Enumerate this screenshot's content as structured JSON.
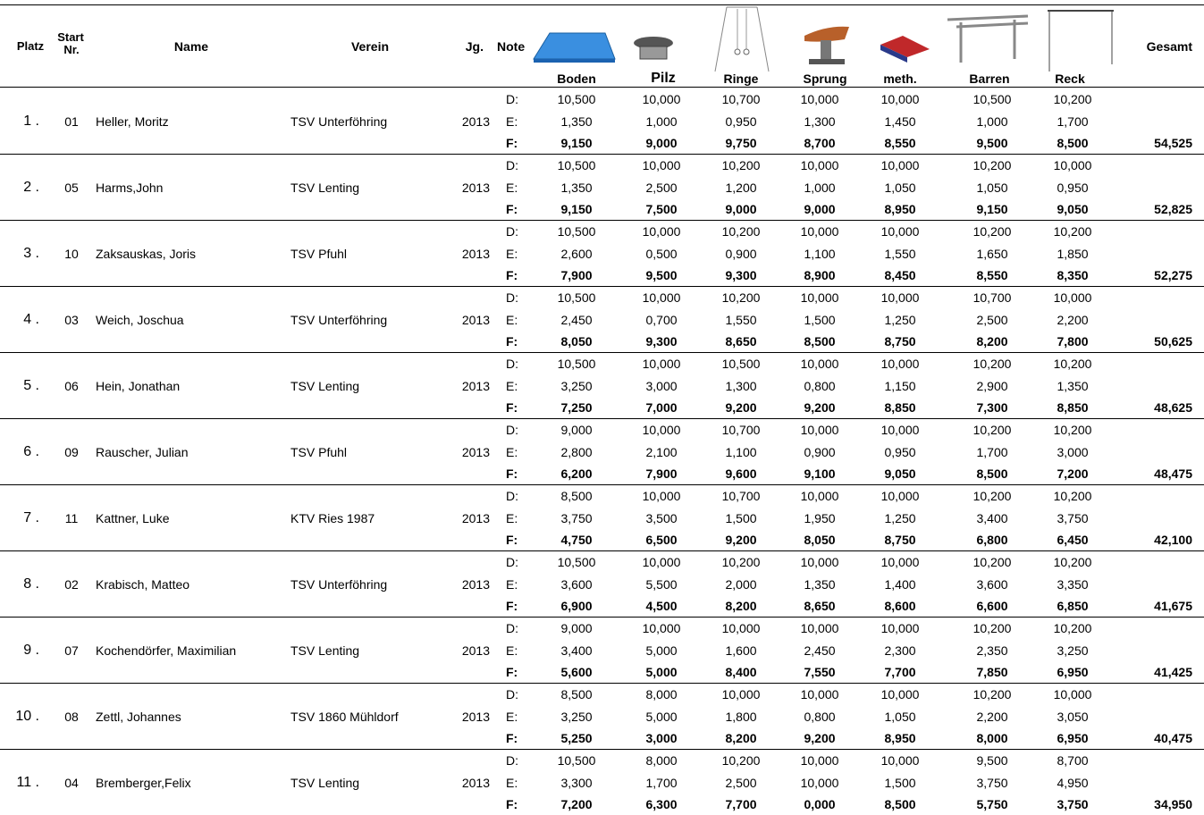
{
  "header": {
    "platz": "Platz",
    "start": "Start",
    "nr": "Nr.",
    "name": "Name",
    "verein": "Verein",
    "jg": "Jg.",
    "note": "Note",
    "apparatus": [
      "Boden",
      "Pilz",
      "Ringe",
      "Sprung",
      "meth.",
      "Barren",
      "Reck"
    ],
    "gesamt": "Gesamt"
  },
  "note_labels": [
    "D:",
    "E:",
    "F:"
  ],
  "rows": [
    {
      "platz": "1 .",
      "start": "01",
      "name": "Heller, Moritz",
      "verein": "TSV Unterföhring",
      "jg": "2013",
      "d": [
        "10,500",
        "10,000",
        "10,700",
        "10,000",
        "10,000",
        "10,500",
        "10,200"
      ],
      "e": [
        "1,350",
        "1,000",
        "0,950",
        "1,300",
        "1,450",
        "1,000",
        "1,700"
      ],
      "f": [
        "9,150",
        "9,000",
        "9,750",
        "8,700",
        "8,550",
        "9,500",
        "8,500"
      ],
      "gesamt": "54,525"
    },
    {
      "platz": "2 .",
      "start": "05",
      "name": "Harms,John",
      "verein": "TSV Lenting",
      "jg": "2013",
      "d": [
        "10,500",
        "10,000",
        "10,200",
        "10,000",
        "10,000",
        "10,200",
        "10,000"
      ],
      "e": [
        "1,350",
        "2,500",
        "1,200",
        "1,000",
        "1,050",
        "1,050",
        "0,950"
      ],
      "f": [
        "9,150",
        "7,500",
        "9,000",
        "9,000",
        "8,950",
        "9,150",
        "9,050"
      ],
      "gesamt": "52,825"
    },
    {
      "platz": "3 .",
      "start": "10",
      "name": "Zaksauskas, Joris",
      "verein": "TSV Pfuhl",
      "jg": "2013",
      "d": [
        "10,500",
        "10,000",
        "10,200",
        "10,000",
        "10,000",
        "10,200",
        "10,200"
      ],
      "e": [
        "2,600",
        "0,500",
        "0,900",
        "1,100",
        "1,550",
        "1,650",
        "1,850"
      ],
      "f": [
        "7,900",
        "9,500",
        "9,300",
        "8,900",
        "8,450",
        "8,550",
        "8,350"
      ],
      "gesamt": "52,275"
    },
    {
      "platz": "4 .",
      "start": "03",
      "name": "Weich, Joschua",
      "verein": "TSV Unterföhring",
      "jg": "2013",
      "d": [
        "10,500",
        "10,000",
        "10,200",
        "10,000",
        "10,000",
        "10,700",
        "10,000"
      ],
      "e": [
        "2,450",
        "0,700",
        "1,550",
        "1,500",
        "1,250",
        "2,500",
        "2,200"
      ],
      "f": [
        "8,050",
        "9,300",
        "8,650",
        "8,500",
        "8,750",
        "8,200",
        "7,800"
      ],
      "gesamt": "50,625"
    },
    {
      "platz": "5 .",
      "start": "06",
      "name": "Hein, Jonathan",
      "verein": "TSV Lenting",
      "jg": "2013",
      "d": [
        "10,500",
        "10,000",
        "10,500",
        "10,000",
        "10,000",
        "10,200",
        "10,200"
      ],
      "e": [
        "3,250",
        "3,000",
        "1,300",
        "0,800",
        "1,150",
        "2,900",
        "1,350"
      ],
      "f": [
        "7,250",
        "7,000",
        "9,200",
        "9,200",
        "8,850",
        "7,300",
        "8,850"
      ],
      "gesamt": "48,625"
    },
    {
      "platz": "6 .",
      "start": "09",
      "name": "Rauscher, Julian",
      "verein": "TSV Pfuhl",
      "jg": "2013",
      "d": [
        "9,000",
        "10,000",
        "10,700",
        "10,000",
        "10,000",
        "10,200",
        "10,200"
      ],
      "e": [
        "2,800",
        "2,100",
        "1,100",
        "0,900",
        "0,950",
        "1,700",
        "3,000"
      ],
      "f": [
        "6,200",
        "7,900",
        "9,600",
        "9,100",
        "9,050",
        "8,500",
        "7,200"
      ],
      "gesamt": "48,475"
    },
    {
      "platz": "7 .",
      "start": "11",
      "name": "Kattner, Luke",
      "verein": "KTV Ries 1987",
      "jg": "2013",
      "d": [
        "8,500",
        "10,000",
        "10,700",
        "10,000",
        "10,000",
        "10,200",
        "10,200"
      ],
      "e": [
        "3,750",
        "3,500",
        "1,500",
        "1,950",
        "1,250",
        "3,400",
        "3,750"
      ],
      "f": [
        "4,750",
        "6,500",
        "9,200",
        "8,050",
        "8,750",
        "6,800",
        "6,450"
      ],
      "gesamt": "42,100"
    },
    {
      "platz": "8 .",
      "start": "02",
      "name": "Krabisch, Matteo",
      "verein": "TSV Unterföhring",
      "jg": "2013",
      "d": [
        "10,500",
        "10,000",
        "10,200",
        "10,000",
        "10,000",
        "10,200",
        "10,200"
      ],
      "e": [
        "3,600",
        "5,500",
        "2,000",
        "1,350",
        "1,400",
        "3,600",
        "3,350"
      ],
      "f": [
        "6,900",
        "4,500",
        "8,200",
        "8,650",
        "8,600",
        "6,600",
        "6,850"
      ],
      "gesamt": "41,675"
    },
    {
      "platz": "9 .",
      "start": "07",
      "name": "Kochendörfer, Maximilian",
      "verein": "TSV Lenting",
      "jg": "2013",
      "d": [
        "9,000",
        "10,000",
        "10,000",
        "10,000",
        "10,000",
        "10,200",
        "10,200"
      ],
      "e": [
        "3,400",
        "5,000",
        "1,600",
        "2,450",
        "2,300",
        "2,350",
        "3,250"
      ],
      "f": [
        "5,600",
        "5,000",
        "8,400",
        "7,550",
        "7,700",
        "7,850",
        "6,950"
      ],
      "gesamt": "41,425"
    },
    {
      "platz": "10 .",
      "start": "08",
      "name": "Zettl, Johannes",
      "verein": "TSV 1860 Mühldorf",
      "jg": "2013",
      "d": [
        "8,500",
        "8,000",
        "10,000",
        "10,000",
        "10,000",
        "10,200",
        "10,000"
      ],
      "e": [
        "3,250",
        "5,000",
        "1,800",
        "0,800",
        "1,050",
        "2,200",
        "3,050"
      ],
      "f": [
        "5,250",
        "3,000",
        "8,200",
        "9,200",
        "8,950",
        "8,000",
        "6,950"
      ],
      "gesamt": "40,475"
    },
    {
      "platz": "11 .",
      "start": "04",
      "name": "Bremberger,Felix",
      "verein": "TSV Lenting",
      "jg": "2013",
      "d": [
        "10,500",
        "8,000",
        "10,200",
        "10,000",
        "10,000",
        "9,500",
        "8,700"
      ],
      "e": [
        "3,300",
        "1,700",
        "2,500",
        "10,000",
        "1,500",
        "3,750",
        "4,950"
      ],
      "f": [
        "7,200",
        "6,300",
        "7,700",
        "0,000",
        "8,500",
        "5,750",
        "3,750"
      ],
      "gesamt": "34,950"
    }
  ]
}
